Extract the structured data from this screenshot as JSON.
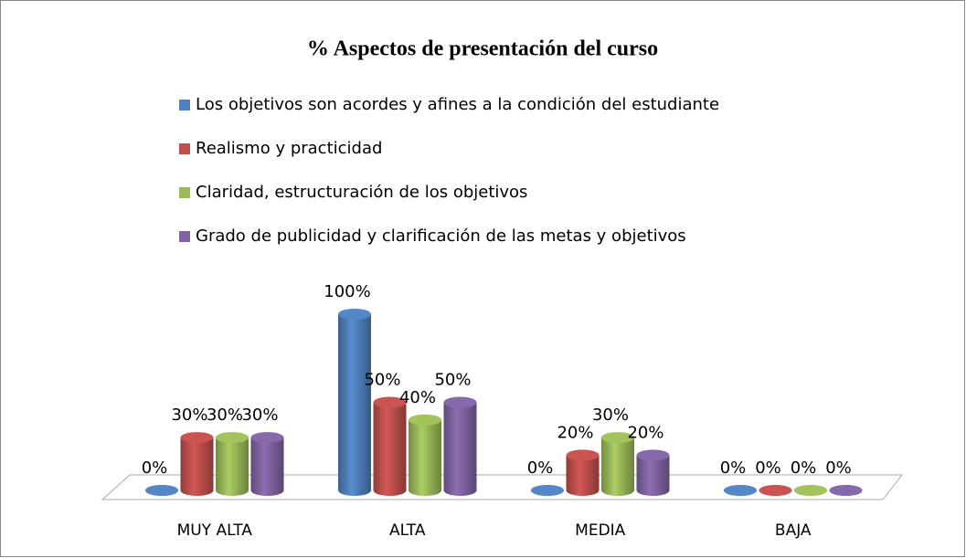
{
  "chart_data": {
    "type": "bar3d",
    "title": "% Aspectos de presentación del curso",
    "categories": [
      "MUY ALTA",
      "ALTA",
      "MEDIA",
      "BAJA"
    ],
    "series": [
      {
        "name": "Los objetivos son acordes y afines a la condición del estudiante",
        "color": "#4f81bd",
        "values": [
          0,
          100,
          0,
          0
        ],
        "value_labels": [
          "0%",
          "100%",
          "0%",
          "0%"
        ]
      },
      {
        "name": "Realismo y practicidad",
        "color": "#c0504d",
        "values": [
          30,
          50,
          20,
          0
        ],
        "value_labels": [
          "30%",
          "50%",
          "20%",
          "0%"
        ]
      },
      {
        "name": "Claridad, estructuración de los objetivos",
        "color": "#9bbb59",
        "values": [
          30,
          40,
          30,
          0
        ],
        "value_labels": [
          "30%",
          "40%",
          "30%",
          "0%"
        ]
      },
      {
        "name": "Grado de publicidad y clarificación de las metas y objetivos",
        "color": "#8064a2",
        "values": [
          30,
          50,
          20,
          0
        ],
        "value_labels": [
          "30%",
          "50%",
          "20%",
          "0%"
        ]
      }
    ],
    "legend": "top"
  }
}
